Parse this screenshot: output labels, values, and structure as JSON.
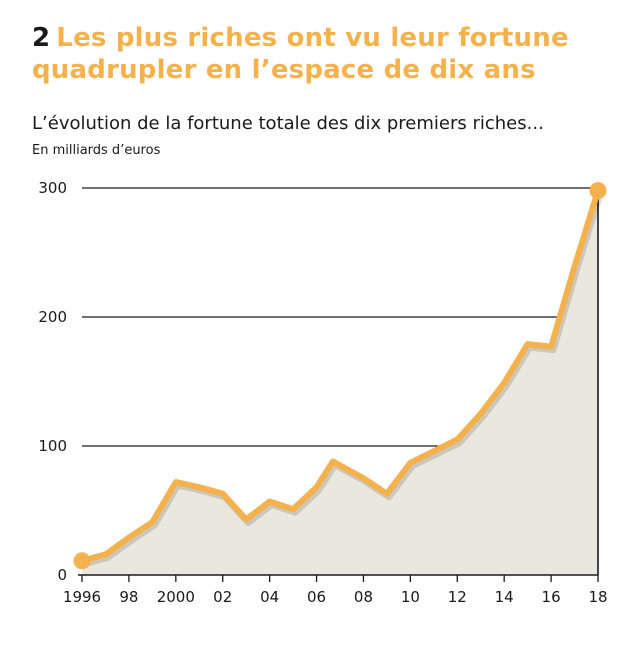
{
  "header": {
    "number": "2",
    "title_line1": "Les plus riches ont vu leur fortune",
    "title_line2": "quadrupler en l’espace de dix ans",
    "subtitle": "L’évolution de la fortune totale des dix premiers riches...",
    "unit": "En milliards d’euros"
  },
  "colors": {
    "accent": "#F5B14C",
    "area_fill": "#EAE8DE",
    "axis": "#1a1a1a"
  },
  "chart_data": {
    "type": "area",
    "title": "L’évolution de la fortune totale des dix premiers riches...",
    "ylabel": "En milliards d’euros",
    "xlabel": "",
    "ylim": [
      0,
      300
    ],
    "xlim": [
      1996,
      2018
    ],
    "y_ticks": [
      0,
      100,
      200,
      300
    ],
    "x_ticks": [
      {
        "value": 1996,
        "label": "1996"
      },
      {
        "value": 1998,
        "label": "98"
      },
      {
        "value": 2000,
        "label": "2000"
      },
      {
        "value": 2002,
        "label": "02"
      },
      {
        "value": 2004,
        "label": "04"
      },
      {
        "value": 2006,
        "label": "06"
      },
      {
        "value": 2008,
        "label": "08"
      },
      {
        "value": 2010,
        "label": "10"
      },
      {
        "value": 2012,
        "label": "12"
      },
      {
        "value": 2014,
        "label": "14"
      },
      {
        "value": 2016,
        "label": "16"
      },
      {
        "value": 2018,
        "label": "18"
      }
    ],
    "grid": "horizontal",
    "series": [
      {
        "points": [
          [
            1996,
            11
          ],
          [
            1997,
            16
          ],
          [
            1998,
            29
          ],
          [
            1999,
            41
          ],
          [
            2000,
            72
          ],
          [
            2001,
            68
          ],
          [
            2002,
            63
          ],
          [
            2003,
            43
          ],
          [
            2004,
            57
          ],
          [
            2005,
            51
          ],
          [
            2006,
            68
          ],
          [
            2006.7,
            88
          ],
          [
            2008,
            75
          ],
          [
            2009,
            63
          ],
          [
            2010,
            87
          ],
          [
            2011,
            96
          ],
          [
            2012,
            105
          ],
          [
            2013,
            125
          ],
          [
            2014,
            149
          ],
          [
            2015,
            179
          ],
          [
            2016,
            177
          ],
          [
            2017,
            239
          ],
          [
            2018,
            298
          ]
        ]
      }
    ]
  }
}
